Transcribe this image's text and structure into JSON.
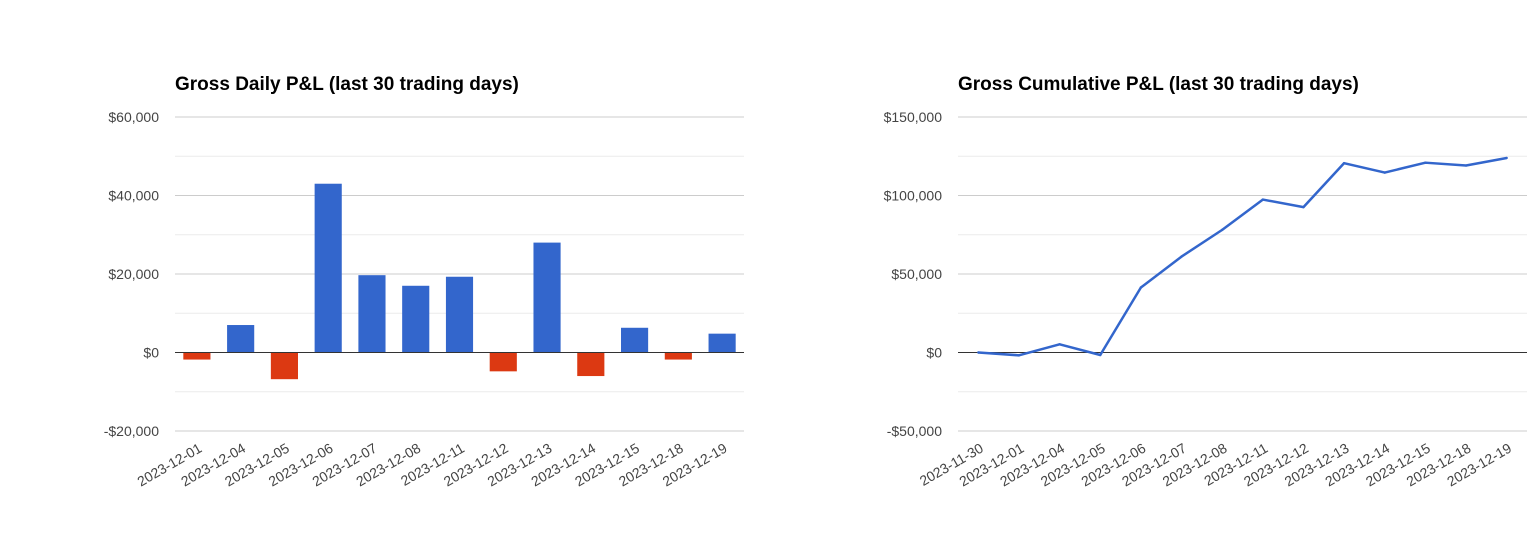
{
  "colors": {
    "positive": "#3366cc",
    "negative": "#dc3912",
    "line": "#3366cc",
    "grid_major": "#cccccc",
    "grid_minor": "#ebebeb",
    "zero_line": "#333333",
    "text": "#444444"
  },
  "chart_data": [
    {
      "type": "bar",
      "title": "Gross Daily P&L (last 30 trading days)",
      "xlabel": "",
      "ylabel": "",
      "ylim": [
        -20000,
        60000
      ],
      "yticks": [
        60000,
        40000,
        20000,
        0,
        -20000
      ],
      "ytick_labels": [
        "$60,000",
        "$40,000",
        "$20,000",
        "$0",
        "-$20,000"
      ],
      "grid": true,
      "categories": [
        "2023-12-01",
        "2023-12-04",
        "2023-12-05",
        "2023-12-06",
        "2023-12-07",
        "2023-12-08",
        "2023-12-11",
        "2023-12-12",
        "2023-12-13",
        "2023-12-14",
        "2023-12-15",
        "2023-12-18",
        "2023-12-19"
      ],
      "values": [
        -1800,
        7000,
        -6800,
        43000,
        19700,
        17000,
        19300,
        -4800,
        28000,
        -6000,
        6300,
        -1800,
        4800
      ]
    },
    {
      "type": "line",
      "title": "Gross Cumulative P&L (last 30 trading days)",
      "xlabel": "",
      "ylabel": "",
      "ylim": [
        -50000,
        150000
      ],
      "yticks": [
        150000,
        100000,
        50000,
        0,
        -50000
      ],
      "ytick_labels": [
        "$150,000",
        "$100,000",
        "$50,000",
        "$0",
        "-$50,000"
      ],
      "grid": true,
      "categories": [
        "2023-11-30",
        "2023-12-01",
        "2023-12-04",
        "2023-12-05",
        "2023-12-06",
        "2023-12-07",
        "2023-12-08",
        "2023-12-11",
        "2023-12-12",
        "2023-12-13",
        "2023-12-14",
        "2023-12-15",
        "2023-12-18",
        "2023-12-19"
      ],
      "values": [
        0,
        -1800,
        5200,
        -1600,
        41400,
        61100,
        78100,
        97400,
        92600,
        120600,
        114600,
        120900,
        119100,
        123900
      ]
    }
  ]
}
